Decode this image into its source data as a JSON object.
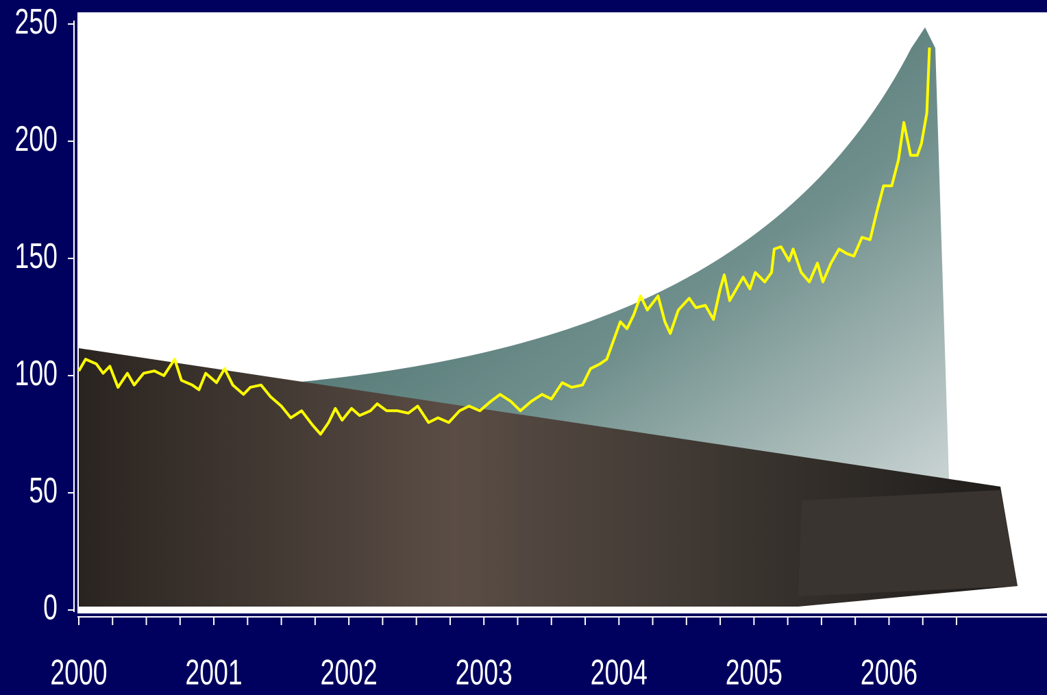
{
  "chart_data": {
    "type": "line",
    "x": [
      2000,
      2000.05,
      2000.13,
      2000.18,
      2000.23,
      2000.29,
      2000.36,
      2000.41,
      2000.48,
      2000.56,
      2000.63,
      2000.71,
      2000.76,
      2000.84,
      2000.89,
      2000.94,
      2001.02,
      2001.08,
      2001.14,
      2001.22,
      2001.27,
      2001.35,
      2001.42,
      2001.5,
      2001.57,
      2001.65,
      2001.73,
      2001.79,
      2001.85,
      2001.9,
      2001.95,
      2002.02,
      2002.08,
      2002.16,
      2002.21,
      2002.28,
      2002.36,
      2002.44,
      2002.51,
      2002.59,
      2002.66,
      2002.74,
      2002.82,
      2002.89,
      2002.97,
      2003.05,
      2003.12,
      2003.2,
      2003.27,
      2003.35,
      2003.43,
      2003.5,
      2003.58,
      2003.65,
      2003.73,
      2003.79,
      2003.86,
      2003.91,
      2003.96,
      2004.01,
      2004.06,
      2004.11,
      2004.16,
      2004.21,
      2004.29,
      2004.34,
      2004.38,
      2004.44,
      2004.52,
      2004.57,
      2004.64,
      2004.7,
      2004.75,
      2004.78,
      2004.82,
      2004.87,
      2004.92,
      2004.97,
      2005.01,
      2005.08,
      2005.13,
      2005.15,
      2005.2,
      2005.26,
      2005.29,
      2005.35,
      2005.41,
      2005.47,
      2005.51,
      2005.57,
      2005.63,
      2005.69,
      2005.74,
      2005.8,
      2005.86,
      2005.91,
      2005.96,
      2006.02,
      2006.07,
      2006.11,
      2006.16,
      2006.21,
      2006.24,
      2006.28,
      2006.3
    ],
    "series": [
      {
        "color": "#ffff00",
        "values": [
          102,
          107,
          105,
          101,
          104,
          95,
          101,
          96,
          101,
          102,
          100,
          107,
          98,
          96,
          94,
          101,
          97,
          103,
          96,
          92,
          95,
          96,
          91,
          87,
          82,
          85,
          79,
          75,
          80,
          86,
          81,
          86,
          83,
          85,
          88,
          85,
          85,
          84,
          87,
          80,
          82,
          80,
          85,
          87,
          85,
          89,
          92,
          89,
          85,
          89,
          92,
          90,
          97,
          95,
          96,
          103,
          105,
          107,
          115,
          123,
          120,
          126,
          134,
          128,
          134,
          123,
          118,
          128,
          133,
          129,
          130,
          124,
          137,
          143,
          132,
          137,
          142,
          137,
          144,
          140,
          144,
          154,
          155,
          149,
          154,
          144,
          140,
          148,
          140,
          148,
          154,
          152,
          151,
          159,
          158,
          170,
          181,
          181,
          192,
          208,
          194,
          194,
          199,
          212,
          240
        ]
      }
    ],
    "xlim": [
      2000,
      2007.17
    ],
    "xticks": [
      2000,
      2001,
      2002,
      2003,
      2004,
      2005,
      2006
    ],
    "xminorticks": [
      2000.25,
      2000.5,
      2000.75,
      2001.25,
      2001.5,
      2001.75,
      2002.25,
      2002.5,
      2002.75,
      2003.25,
      2003.5,
      2003.75,
      2004.25,
      2004.5,
      2004.75,
      2005.25,
      2005.5,
      2005.75,
      2006.25,
      2006.5
    ],
    "ylim": [
      0,
      255
    ],
    "yticks": [
      0,
      50,
      100,
      150,
      200,
      250
    ]
  }
}
